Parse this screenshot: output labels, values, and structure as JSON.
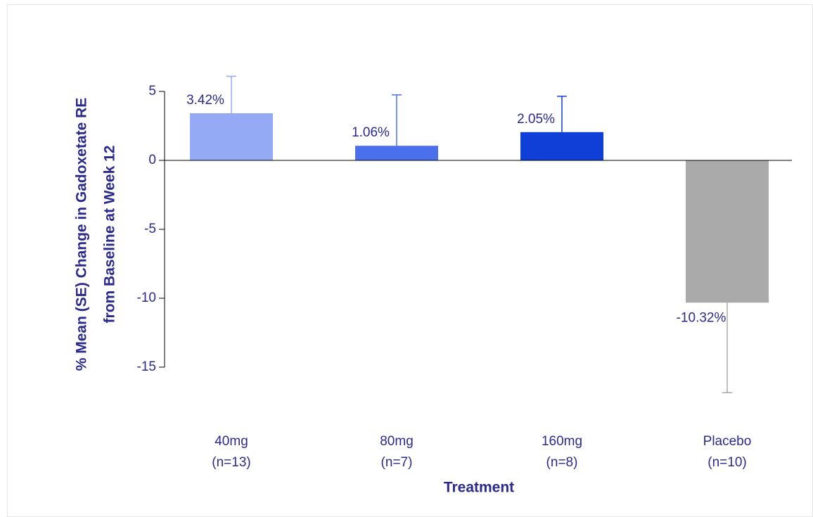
{
  "chart_data": {
    "type": "bar",
    "x_label": "Treatment",
    "y_label": [
      "% Mean (SE) Change in Gadoxetate RE",
      "from Baseline at Week 12"
    ],
    "categories": [
      [
        "40mg",
        "(n=13)"
      ],
      [
        "80mg",
        "(n=7)"
      ],
      [
        "160mg",
        "(n=8)"
      ],
      [
        "Placebo",
        "(n=10)"
      ]
    ],
    "values": [
      3.42,
      1.06,
      2.05,
      -10.32
    ],
    "value_labels": [
      "3.42%",
      "1.06%",
      "2.05%",
      "-10.32%"
    ],
    "errors": [
      2.68,
      3.69,
      2.6,
      6.53
    ],
    "colors": [
      "#94aaf4",
      "#4a70ee",
      "#0f3fd6",
      "#aaaaaa"
    ],
    "ylim": [
      -18,
      7
    ],
    "yticks": [
      5,
      0,
      -5,
      -10,
      -15
    ]
  }
}
